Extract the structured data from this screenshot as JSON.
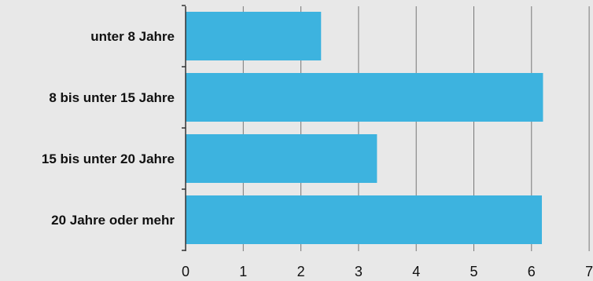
{
  "chart_data": {
    "type": "bar",
    "orientation": "horizontal",
    "categories": [
      "unter 8 Jahre",
      "8 bis unter 15 Jahre",
      "15 bis unter 20 Jahre",
      "20 Jahre oder mehr"
    ],
    "values": [
      2.35,
      6.2,
      3.32,
      6.18
    ],
    "xlim": [
      0,
      7
    ],
    "xticks": [
      "0",
      "1",
      "2",
      "3",
      "4",
      "5",
      "6",
      "7"
    ],
    "grid": true,
    "bar_color": "#3db3df",
    "grid_color": "#777777"
  }
}
